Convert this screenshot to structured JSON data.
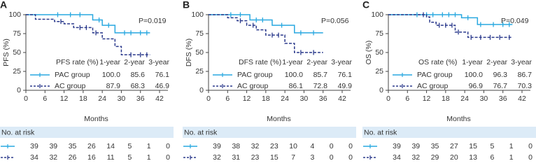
{
  "chart_data": [
    {
      "type": "line",
      "panel_label": "A",
      "ylabel": "PFS (%)",
      "xlabel": "Months",
      "p_value": "P=0.019",
      "xlim": [
        0,
        42
      ],
      "xticks": [
        0,
        6,
        12,
        18,
        24,
        30,
        36,
        42
      ],
      "ylim": [
        0,
        100
      ],
      "yticks": [
        0,
        25,
        50,
        75,
        100
      ],
      "rate_header": "PFS rate (%)",
      "rate_columns": [
        "1-year",
        "2-year",
        "3-year"
      ],
      "risk_header": "No. at risk",
      "series": [
        {
          "name": "PAC group",
          "color": "#29a8e0",
          "dash": false,
          "x": [
            0,
            21,
            24,
            28,
            39
          ],
          "values": [
            100,
            93,
            86,
            76,
            76
          ],
          "censored": [
            10,
            14,
            17,
            23,
            26,
            31,
            33,
            36,
            38
          ],
          "rates": [
            {
              "value": 100,
              "label": "100.0"
            },
            85.6,
            76.1
          ],
          "at_risk": [
            39,
            39,
            35,
            26,
            14,
            5,
            1,
            0
          ]
        },
        {
          "name": "AC group",
          "color": "#2b3a8c",
          "dash": true,
          "x": [
            0,
            3,
            9,
            12,
            15,
            21,
            24,
            28,
            30,
            39
          ],
          "values": [
            100,
            94,
            91,
            88,
            83,
            76,
            68,
            58,
            47,
            47
          ],
          "censored": [
            11,
            17,
            19,
            22,
            33,
            36,
            38
          ],
          "rates": [
            87.9,
            68.3,
            46.9
          ],
          "at_risk": [
            34,
            32,
            26,
            16,
            11,
            5,
            1,
            0
          ]
        }
      ]
    },
    {
      "type": "line",
      "panel_label": "B",
      "ylabel": "DFS (%)",
      "xlabel": "Months",
      "p_value": "P=0.056",
      "xlim": [
        0,
        42
      ],
      "xticks": [
        0,
        6,
        12,
        18,
        24,
        30,
        36,
        42
      ],
      "ylim": [
        0,
        100
      ],
      "yticks": [
        0,
        25,
        50,
        75,
        100
      ],
      "rate_header": "DFS rate (%)",
      "rate_columns": [
        "1-year",
        "2-year",
        "3-year"
      ],
      "risk_header": "No. at risk",
      "series": [
        {
          "name": "PAC group",
          "color": "#29a8e0",
          "dash": false,
          "x": [
            0,
            13,
            20,
            27,
            36
          ],
          "values": [
            100,
            93,
            86,
            76,
            76
          ],
          "censored": [
            7,
            10,
            15,
            17,
            23,
            29,
            33
          ],
          "rates": [
            {
              "value": 100,
              "label": "100.0"
            },
            85.7,
            76.1
          ],
          "at_risk": [
            39,
            38,
            32,
            23,
            10,
            4,
            0,
            0
          ]
        },
        {
          "name": "AC group",
          "color": "#2b3a8c",
          "dash": true,
          "x": [
            0,
            6,
            9,
            12,
            15,
            18,
            24,
            27,
            36
          ],
          "values": [
            100,
            96,
            92,
            86,
            80,
            73,
            62,
            50,
            50
          ],
          "censored": [
            10,
            14,
            20,
            22,
            29,
            33
          ],
          "rates": [
            86.1,
            72.8,
            49.9
          ],
          "at_risk": [
            32,
            31,
            23,
            15,
            7,
            3,
            0,
            0
          ]
        }
      ]
    },
    {
      "type": "line",
      "panel_label": "C",
      "ylabel": "OS (%)",
      "xlabel": "Months",
      "p_value": "P=0.049",
      "xlim": [
        0,
        42
      ],
      "xticks": [
        0,
        6,
        12,
        18,
        24,
        30,
        36,
        42
      ],
      "ylim": [
        0,
        100
      ],
      "yticks": [
        0,
        25,
        50,
        75,
        100
      ],
      "rate_header": "OS rate (%)",
      "rate_columns": [
        "1-year",
        "2-year",
        "3-year"
      ],
      "risk_header": "No. at risk",
      "series": [
        {
          "name": "PAC group",
          "color": "#29a8e0",
          "dash": false,
          "x": [
            0,
            23,
            28,
            39
          ],
          "values": [
            100,
            96,
            87,
            87
          ],
          "censored": [
            9,
            12,
            14,
            17,
            19,
            21,
            25,
            29,
            33,
            36,
            38
          ],
          "rates": [
            {
              "value": 100,
              "label": "100.0"
            },
            96.3,
            86.7
          ],
          "at_risk": [
            39,
            39,
            35,
            27,
            15,
            5,
            1,
            0
          ]
        },
        {
          "name": "AC group",
          "color": "#2b3a8c",
          "dash": true,
          "x": [
            0,
            12,
            13,
            15,
            21,
            25,
            39
          ],
          "values": [
            100,
            97,
            90,
            86,
            77,
            70,
            70
          ],
          "censored": [
            11,
            16,
            18,
            20,
            22,
            26,
            29,
            32,
            35,
            38
          ],
          "rates": [
            96.9,
            76.7,
            70.3
          ],
          "at_risk": [
            34,
            32,
            29,
            20,
            13,
            6,
            1,
            0
          ]
        }
      ]
    }
  ]
}
